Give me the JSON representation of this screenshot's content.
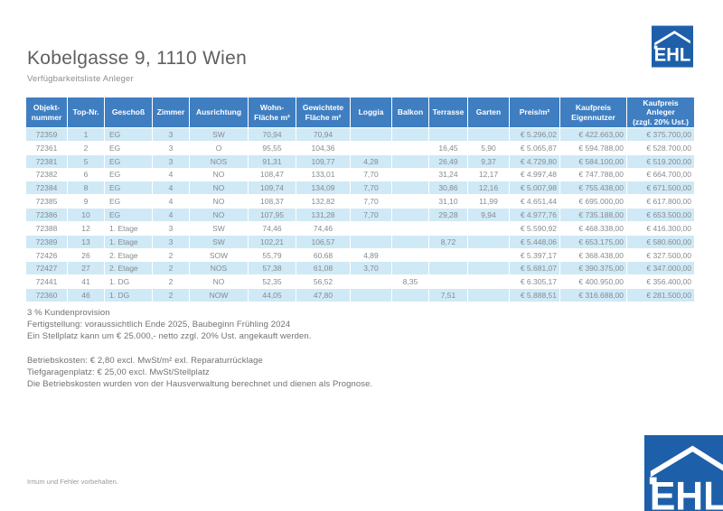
{
  "page": {
    "title": "Kobelgasse 9, 1110 Wien",
    "subtitle": "Verfügbarkeitsliste Anleger",
    "disclaimer": "Irrtum und Fehler vorbehalten."
  },
  "logo": {
    "text": "EHL",
    "color": "#1e5fa9"
  },
  "theme": {
    "header_blue": "#3f7ec1",
    "row_alt_blue": "#cfe9f6"
  },
  "table": {
    "columns": [
      "Objekt-\nnummer",
      "Top-Nr.",
      "Geschoß",
      "Zimmer",
      "Ausrichtung",
      "Wohn-\nFläche m²",
      "Gewichtete\nFläche m²",
      "Loggia",
      "Balkon",
      "Terrasse",
      "Garten",
      "Preis/m²",
      "Kaufpreis\nEigennutzer",
      "Kaufpreis\nAnleger\n(zzgl. 20% Ust.)"
    ],
    "rows": [
      [
        "72359",
        "1",
        "EG",
        "3",
        "SW",
        "70,94",
        "70,94",
        "",
        "",
        "",
        "",
        "€ 5.296,02",
        "€ 422.663,00",
        "€ 375.700,00"
      ],
      [
        "72361",
        "2",
        "EG",
        "3",
        "O",
        "95,55",
        "104,36",
        "",
        "",
        "16,45",
        "5,90",
        "€ 5.065,87",
        "€ 594.788,00",
        "€ 528.700,00"
      ],
      [
        "72381",
        "5",
        "EG",
        "3",
        "NOS",
        "91,31",
        "109,77",
        "4,28",
        "",
        "26,49",
        "9,37",
        "€ 4.729,80",
        "€ 584.100,00",
        "€ 519.200,00"
      ],
      [
        "72382",
        "6",
        "EG",
        "4",
        "NO",
        "108,47",
        "133,01",
        "7,70",
        "",
        "31,24",
        "12,17",
        "€ 4.997,48",
        "€ 747.788,00",
        "€ 664.700,00"
      ],
      [
        "72384",
        "8",
        "EG",
        "4",
        "NO",
        "109,74",
        "134,09",
        "7,70",
        "",
        "30,86",
        "12,16",
        "€ 5.007,98",
        "€ 755.438,00",
        "€ 671.500,00"
      ],
      [
        "72385",
        "9",
        "EG",
        "4",
        "NO",
        "108,37",
        "132,82",
        "7,70",
        "",
        "31,10",
        "11,99",
        "€ 4.651,44",
        "€ 695.000,00",
        "€ 617.800,00"
      ],
      [
        "72386",
        "10",
        "EG",
        "4",
        "NO",
        "107,95",
        "131,28",
        "7,70",
        "",
        "29,28",
        "9,94",
        "€ 4.977,76",
        "€ 735.188,00",
        "€ 653.500,00"
      ],
      [
        "72388",
        "12",
        "1. Etage",
        "3",
        "SW",
        "74,46",
        "74,46",
        "",
        "",
        "",
        "",
        "€ 5.590,92",
        "€ 468.338,00",
        "€ 416.300,00"
      ],
      [
        "72389",
        "13",
        "1. Etage",
        "3",
        "SW",
        "102,21",
        "106,57",
        "",
        "",
        "8,72",
        "",
        "€ 5.448,06",
        "€ 653.175,00",
        "€ 580.600,00"
      ],
      [
        "72426",
        "26",
        "2. Etage",
        "2",
        "SOW",
        "55,79",
        "60,68",
        "4,89",
        "",
        "",
        "",
        "€ 5.397,17",
        "€ 368.438,00",
        "€ 327.500,00"
      ],
      [
        "72427",
        "27",
        "2. Etage",
        "2",
        "NOS",
        "57,38",
        "61,08",
        "3,70",
        "",
        "",
        "",
        "€ 5.681,07",
        "€ 390.375,00",
        "€ 347.000,00"
      ],
      [
        "72441",
        "41",
        "1. DG",
        "2",
        "NO",
        "52,35",
        "56,52",
        "",
        "8,35",
        "",
        "",
        "€ 6.305,17",
        "€ 400.950,00",
        "€ 356.400,00"
      ],
      [
        "72360",
        "46",
        "1. DG",
        "2",
        "NOW",
        "44,05",
        "47,80",
        "",
        "",
        "7,51",
        "",
        "€ 5.888,51",
        "€ 316.688,00",
        "€ 281.500,00"
      ]
    ]
  },
  "notes": {
    "block1": [
      "3 % Kundenprovision",
      "Fertigstellung: voraussichtlich Ende 2025, Baubeginn Frühling 2024",
      "Ein Stellplatz kann um € 25.000,- netto zzgl. 20% Ust. angekauft werden."
    ],
    "block2": [
      "Betriebskosten: € 2,80 excl. MwSt/m² exl. Reparaturrücklage",
      "Tiefgaragenplatz: € 25,00 excl. MwSt/Stellplatz",
      "Die Betriebskosten wurden von der Hausverwaltung berechnet und dienen als Prognose."
    ]
  }
}
